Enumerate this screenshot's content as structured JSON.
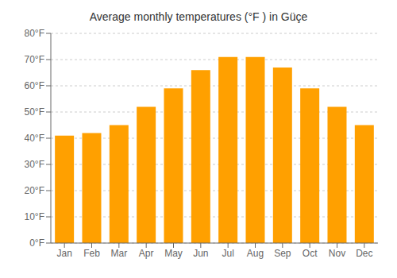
{
  "chart_data": {
    "type": "bar",
    "title": "Average monthly temperatures (°F ) in Güçe",
    "categories": [
      "Jan",
      "Feb",
      "Mar",
      "Apr",
      "May",
      "Jun",
      "Jul",
      "Aug",
      "Sep",
      "Oct",
      "Nov",
      "Dec"
    ],
    "values": [
      41,
      42,
      45,
      52,
      59,
      66,
      71,
      71,
      67,
      59,
      52,
      45
    ],
    "color": "#FFA000",
    "ylim": [
      0,
      80
    ],
    "yticks": [
      {
        "value": 0,
        "label": "0°F"
      },
      {
        "value": 10,
        "label": "10°F"
      },
      {
        "value": 20,
        "label": "20°F"
      },
      {
        "value": 30,
        "label": "30°F"
      },
      {
        "value": 40,
        "label": "40°F"
      },
      {
        "value": 50,
        "label": "50°F"
      },
      {
        "value": 60,
        "label": "60°F"
      },
      {
        "value": 70,
        "label": "70°F"
      },
      {
        "value": 80,
        "label": "80°F"
      }
    ],
    "grid": true
  }
}
